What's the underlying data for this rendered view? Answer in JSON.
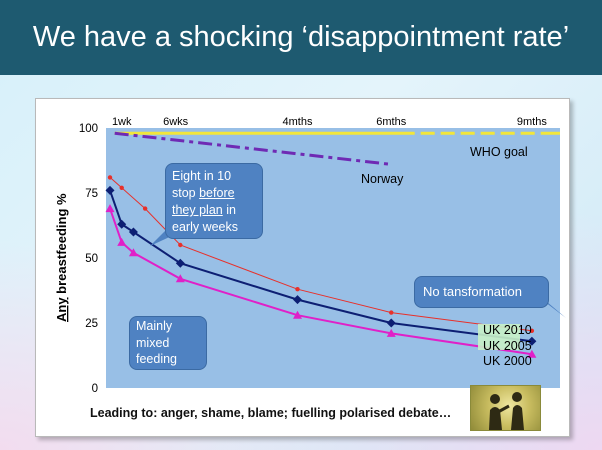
{
  "slide": {
    "title": "We have a shocking ‘disappointment rate’"
  },
  "chart_data": {
    "type": "line",
    "ylabel_underlined": "Any",
    "ylabel_rest": " breastfeeding %",
    "ylim": [
      0,
      100
    ],
    "yticks": [
      0,
      25,
      50,
      75,
      100
    ],
    "xlim_months": [
      0,
      9.6
    ],
    "time_markers": [
      {
        "label": "1wk",
        "month": 0.25
      },
      {
        "label": "6wks",
        "month": 1.4
      },
      {
        "label": "4mths",
        "month": 4
      },
      {
        "label": "6mths",
        "month": 6
      },
      {
        "label": "9mths",
        "month": 9
      }
    ],
    "series": [
      {
        "name": "UK 2010",
        "color": "#e8302a",
        "marker": "dot",
        "x": [
          0,
          0.25,
          0.75,
          1.5,
          4,
          6,
          9
        ],
        "y": [
          81,
          77,
          69,
          55,
          38,
          29,
          22
        ]
      },
      {
        "name": "UK 2005",
        "color": "#0d1f73",
        "marker": "diamond",
        "x": [
          0,
          0.25,
          0.5,
          1.5,
          4,
          6,
          9
        ],
        "y": [
          76,
          63,
          60,
          48,
          34,
          25,
          18
        ]
      },
      {
        "name": "UK 2000",
        "color": "#e020c8",
        "marker": "triangle",
        "x": [
          0,
          0.25,
          0.5,
          1.5,
          4,
          6,
          9
        ],
        "y": [
          69,
          56,
          52,
          42,
          28,
          21,
          13
        ]
      }
    ],
    "reference_lines": [
      {
        "name": "WHO goal",
        "color": "#f2e63a",
        "x": [
          0.1,
          9.6
        ],
        "y": [
          98,
          98
        ]
      },
      {
        "name": "Norway",
        "color": "#6f2ab4",
        "x": [
          0.1,
          6
        ],
        "y": [
          98,
          86
        ]
      }
    ],
    "annotations": {
      "who": "WHO goal",
      "norway": "Norway",
      "early": {
        "line1": "Eight in 10",
        "line2a": "stop ",
        "line2b": "before",
        "line3a": "they plan",
        "line3b": " in",
        "line4": "early weeks"
      },
      "mixed": [
        "Mainly",
        "mixed",
        "feeding"
      ],
      "notrans": "No tansformation"
    }
  },
  "caption": {
    "prefix": "Leading to:",
    "text": " anger, shame, blame; fuelling polarised debate…"
  }
}
